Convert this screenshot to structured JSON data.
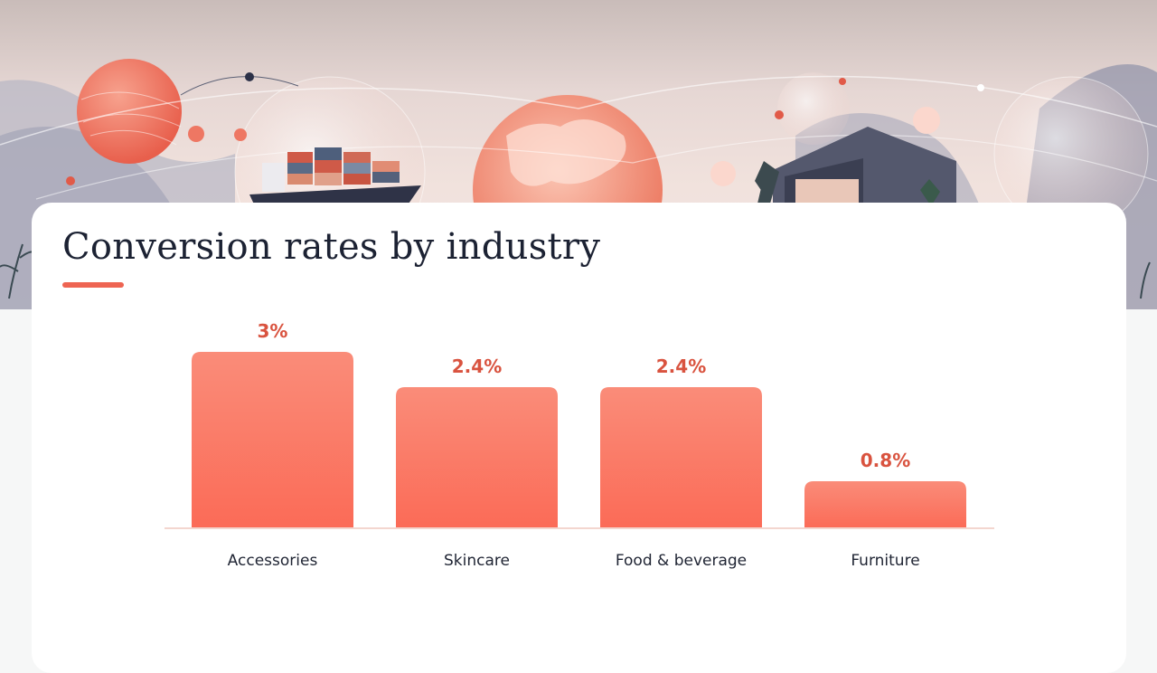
{
  "title": "Conversion rates by industry",
  "colors": {
    "bar_top": "#fa8c79",
    "bar_bottom": "#fb6b57",
    "accent": "#ee6452",
    "value_text": "#d9533f",
    "baseline": "#f3d6cf"
  },
  "chart_data": {
    "type": "bar",
    "categories": [
      "Accessories",
      "Skincare",
      "Food & beverage",
      "Furniture"
    ],
    "values": [
      3,
      2.4,
      2.4,
      0.8
    ],
    "value_labels": [
      "3%",
      "2.4%",
      "2.4%",
      "0.8%"
    ],
    "title": "Conversion rates by industry",
    "xlabel": "",
    "ylabel": "",
    "ylim": [
      0,
      3
    ],
    "grid": false
  }
}
